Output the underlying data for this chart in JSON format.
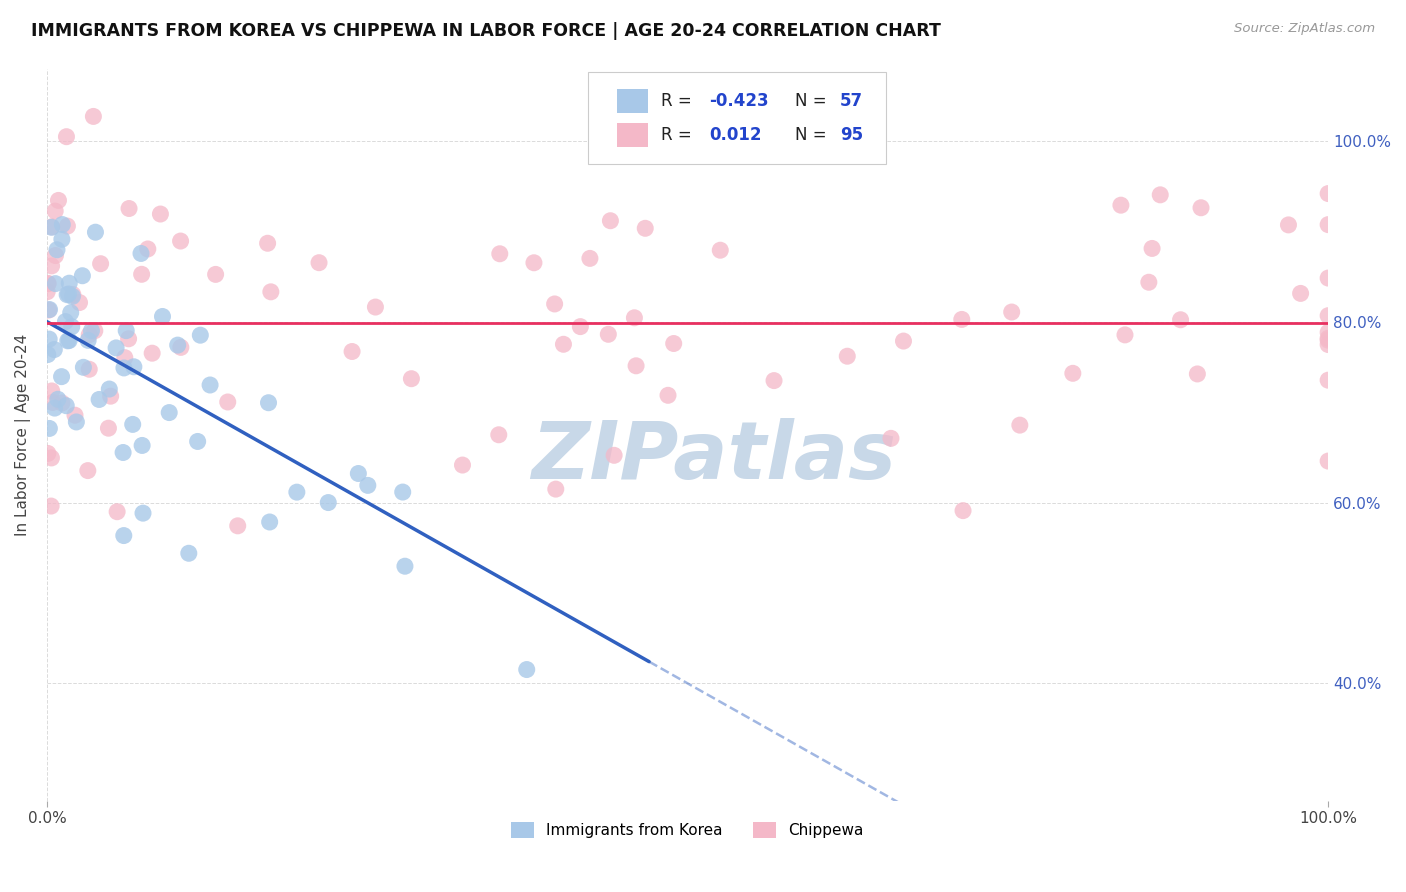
{
  "title": "IMMIGRANTS FROM KOREA VS CHIPPEWA IN LABOR FORCE | AGE 20-24 CORRELATION CHART",
  "source": "Source: ZipAtlas.com",
  "ylabel": "In Labor Force | Age 20-24",
  "xlim": [
    0.0,
    1.0
  ],
  "ylim": [
    0.27,
    1.08
  ],
  "ytick_labels": [
    "40.0%",
    "60.0%",
    "80.0%",
    "100.0%"
  ],
  "ytick_values": [
    0.4,
    0.6,
    0.8,
    1.0
  ],
  "color_korea": "#a8c8e8",
  "color_chippewa": "#f4b8c8",
  "color_korea_line": "#3060c0",
  "color_chippewa_line": "#e83060",
  "watermark_color": "#c8d8e8",
  "bg_color": "#ffffff",
  "grid_color": "#cccccc",
  "tick_label_color": "#4060c0",
  "right_tick_label_color": "#4060c0"
}
